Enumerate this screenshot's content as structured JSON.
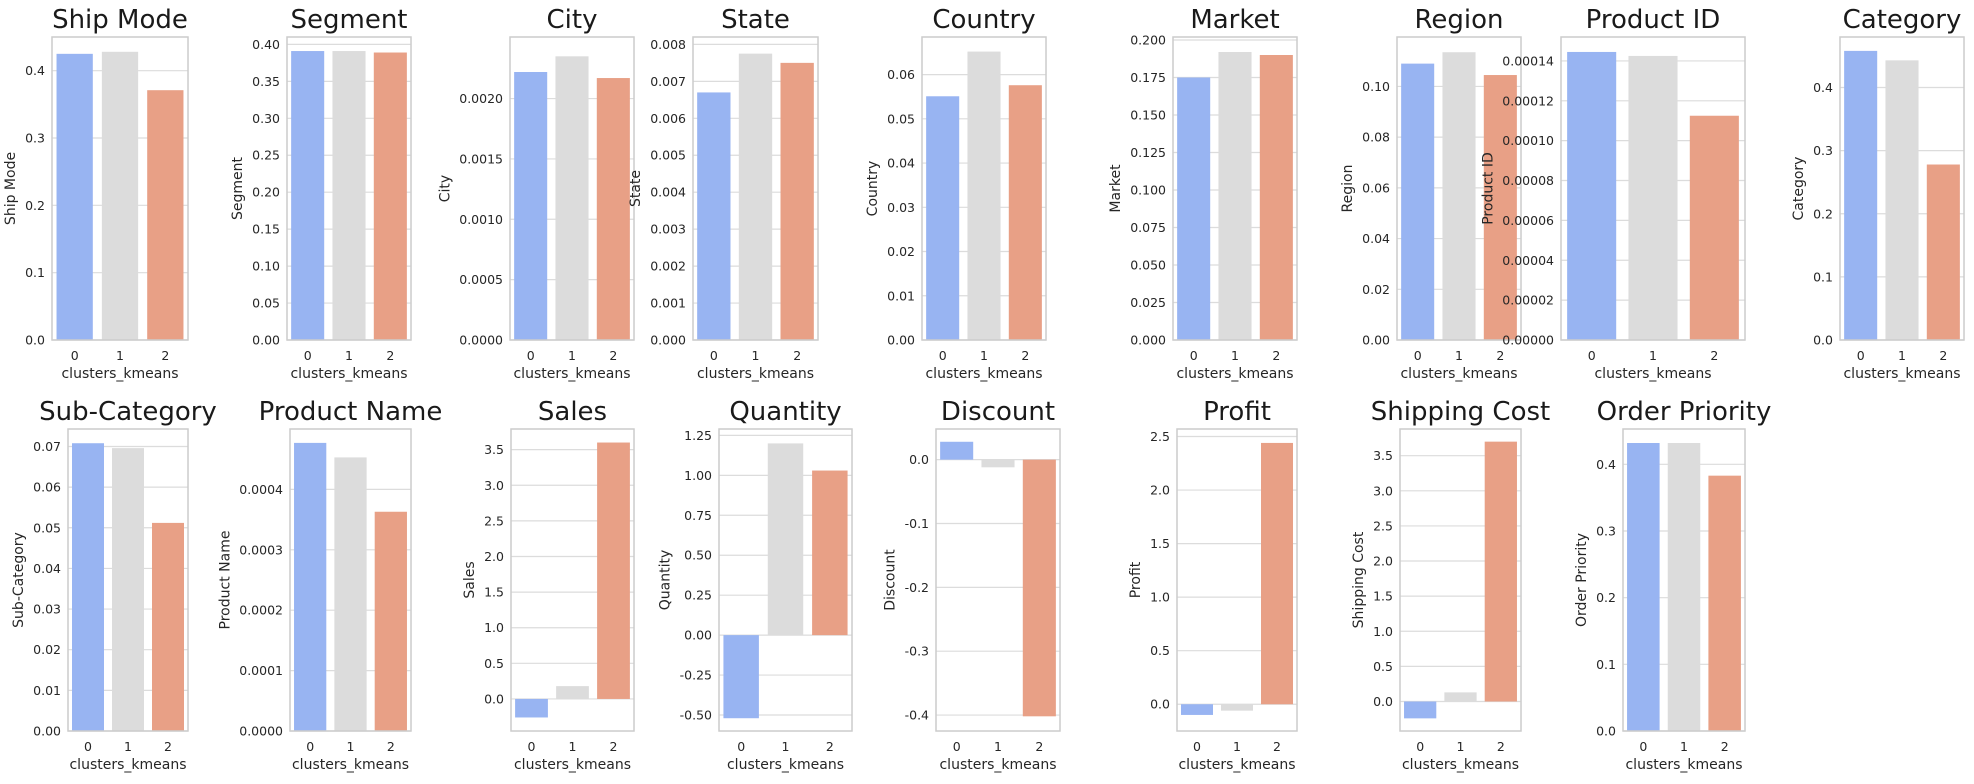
{
  "colors": {
    "cluster_0": "#98b4f2",
    "cluster_1": "#dcdcdc",
    "cluster_2": "#e8a086"
  },
  "chart_data": [
    {
      "type": "bar",
      "title": "Ship Mode",
      "xlabel": "clusters_kmeans",
      "ylabel": "Ship Mode",
      "categories": [
        "0",
        "1",
        "2"
      ],
      "values": [
        0.425,
        0.428,
        0.371
      ],
      "ylim": [
        0,
        0.45
      ],
      "yticks": [
        0.0,
        0.1,
        0.2,
        0.3,
        0.4
      ],
      "yticklabels": [
        "0.0",
        "0.1",
        "0.2",
        "0.3",
        "0.4"
      ],
      "grid": true
    },
    {
      "type": "bar",
      "title": "Segment",
      "xlabel": "clusters_kmeans",
      "ylabel": "Segment",
      "categories": [
        "0",
        "1",
        "2"
      ],
      "values": [
        0.391,
        0.391,
        0.389
      ],
      "ylim": [
        0,
        0.41
      ],
      "yticks": [
        0.0,
        0.05,
        0.1,
        0.15,
        0.2,
        0.25,
        0.3,
        0.35,
        0.4
      ],
      "yticklabels": [
        "0.00",
        "0.05",
        "0.10",
        "0.15",
        "0.20",
        "0.25",
        "0.30",
        "0.35",
        "0.40"
      ],
      "grid": true
    },
    {
      "type": "bar",
      "title": "City",
      "xlabel": "clusters_kmeans",
      "ylabel": "City",
      "categories": [
        "0",
        "1",
        "2"
      ],
      "values": [
        0.00222,
        0.00235,
        0.00217
      ],
      "ylim": [
        0,
        0.00251
      ],
      "yticks": [
        0.0,
        0.0005,
        0.001,
        0.0015,
        0.002
      ],
      "yticklabels": [
        "0.0000",
        "0.0005",
        "0.0010",
        "0.0015",
        "0.0020"
      ],
      "grid": true
    },
    {
      "type": "bar",
      "title": "State",
      "xlabel": "clusters_kmeans",
      "ylabel": "State",
      "categories": [
        "0",
        "1",
        "2"
      ],
      "values": [
        0.0067,
        0.00775,
        0.0075
      ],
      "ylim": [
        0,
        0.0082
      ],
      "yticks": [
        0.0,
        0.001,
        0.002,
        0.003,
        0.004,
        0.005,
        0.006,
        0.007,
        0.008
      ],
      "yticklabels": [
        "0.000",
        "0.001",
        "0.002",
        "0.003",
        "0.004",
        "0.005",
        "0.006",
        "0.007",
        "0.008"
      ],
      "grid": true
    },
    {
      "type": "bar",
      "title": "Country",
      "xlabel": "clusters_kmeans",
      "ylabel": "Country",
      "categories": [
        "0",
        "1",
        "2"
      ],
      "values": [
        0.0551,
        0.0652,
        0.0576
      ],
      "ylim": [
        0,
        0.0685
      ],
      "yticks": [
        0.0,
        0.01,
        0.02,
        0.03,
        0.04,
        0.05,
        0.06
      ],
      "yticklabels": [
        "0.00",
        "0.01",
        "0.02",
        "0.03",
        "0.04",
        "0.05",
        "0.06"
      ],
      "grid": true
    },
    {
      "type": "bar",
      "title": "Market",
      "xlabel": "clusters_kmeans",
      "ylabel": "Market",
      "categories": [
        "0",
        "1",
        "2"
      ],
      "values": [
        0.175,
        0.192,
        0.19
      ],
      "ylim": [
        0,
        0.202
      ],
      "yticks": [
        0.0,
        0.025,
        0.05,
        0.075,
        0.1,
        0.125,
        0.15,
        0.175,
        0.2
      ],
      "yticklabels": [
        "0.000",
        "0.025",
        "0.050",
        "0.075",
        "0.100",
        "0.125",
        "0.150",
        "0.175",
        "0.200"
      ],
      "grid": true
    },
    {
      "type": "bar",
      "title": "Region",
      "xlabel": "clusters_kmeans",
      "ylabel": "Region",
      "categories": [
        "0",
        "1",
        "2"
      ],
      "values": [
        0.109,
        0.1135,
        0.1045
      ],
      "ylim": [
        0,
        0.1195
      ],
      "yticks": [
        0.0,
        0.02,
        0.04,
        0.06,
        0.08,
        0.1
      ],
      "yticklabels": [
        "0.00",
        "0.02",
        "0.04",
        "0.06",
        "0.08",
        "0.10"
      ],
      "grid": true
    },
    {
      "type": "bar",
      "title": "Product ID",
      "xlabel": "clusters_kmeans",
      "ylabel": "Product ID",
      "categories": [
        "0",
        "1",
        "2"
      ],
      "values": [
        0.0001445,
        0.0001425,
        0.0001125
      ],
      "ylim": [
        0,
        0.000152
      ],
      "yticks": [
        0.0,
        2e-05,
        4e-05,
        6e-05,
        8e-05,
        0.0001,
        0.00012,
        0.00014
      ],
      "yticklabels": [
        "0.00000",
        "0.00002",
        "0.00004",
        "0.00006",
        "0.00008",
        "0.00010",
        "0.00012",
        "0.00014"
      ],
      "grid": true
    },
    {
      "type": "bar",
      "title": "Category",
      "xlabel": "clusters_kmeans",
      "ylabel": "Category",
      "categories": [
        "0",
        "1",
        "2"
      ],
      "values": [
        0.458,
        0.443,
        0.278
      ],
      "ylim": [
        0,
        0.48
      ],
      "yticks": [
        0.0,
        0.1,
        0.2,
        0.3,
        0.4
      ],
      "yticklabels": [
        "0.0",
        "0.1",
        "0.2",
        "0.3",
        "0.4"
      ],
      "grid": true
    },
    {
      "type": "bar",
      "title": "Sub-Category",
      "xlabel": "clusters_kmeans",
      "ylabel": "Sub-Category",
      "categories": [
        "0",
        "1",
        "2"
      ],
      "values": [
        0.0708,
        0.0696,
        0.0512
      ],
      "ylim": [
        0,
        0.0743
      ],
      "yticks": [
        0.0,
        0.01,
        0.02,
        0.03,
        0.04,
        0.05,
        0.06,
        0.07
      ],
      "yticklabels": [
        "0.00",
        "0.01",
        "0.02",
        "0.03",
        "0.04",
        "0.05",
        "0.06",
        "0.07"
      ],
      "grid": true
    },
    {
      "type": "bar",
      "title": "Product Name",
      "xlabel": "clusters_kmeans",
      "ylabel": "Product Name",
      "categories": [
        "0",
        "1",
        "2"
      ],
      "values": [
        0.000477,
        0.000453,
        0.000363
      ],
      "ylim": [
        0,
        0.0005
      ],
      "yticks": [
        0.0,
        0.0001,
        0.0002,
        0.0003,
        0.0004
      ],
      "yticklabels": [
        "0.0000",
        "0.0001",
        "0.0002",
        "0.0003",
        "0.0004"
      ],
      "grid": true
    },
    {
      "type": "bar",
      "title": "Sales",
      "xlabel": "clusters_kmeans",
      "ylabel": "Sales",
      "categories": [
        "0",
        "1",
        "2"
      ],
      "values": [
        -0.26,
        0.18,
        3.6
      ],
      "ylim": [
        -0.45,
        3.79
      ],
      "yticks": [
        0.0,
        0.5,
        1.0,
        1.5,
        2.0,
        2.5,
        3.0,
        3.5
      ],
      "yticklabels": [
        "0.0",
        "0.5",
        "1.0",
        "1.5",
        "2.0",
        "2.5",
        "3.0",
        "3.5"
      ],
      "grid": true
    },
    {
      "type": "bar",
      "title": "Quantity",
      "xlabel": "clusters_kmeans",
      "ylabel": "Quantity",
      "categories": [
        "0",
        "1",
        "2"
      ],
      "values": [
        -0.52,
        1.2,
        1.03
      ],
      "ylim": [
        -0.6,
        1.29
      ],
      "yticks": [
        -0.5,
        -0.25,
        0.0,
        0.25,
        0.5,
        0.75,
        1.0,
        1.25
      ],
      "yticklabels": [
        "-0.50",
        "-0.25",
        "0.00",
        "0.25",
        "0.50",
        "0.75",
        "1.00",
        "1.25"
      ],
      "grid": true
    },
    {
      "type": "bar",
      "title": "Discount",
      "xlabel": "clusters_kmeans",
      "ylabel": "Discount",
      "categories": [
        "0",
        "1",
        "2"
      ],
      "values": [
        0.028,
        -0.012,
        -0.402
      ],
      "ylim": [
        -0.425,
        0.048
      ],
      "yticks": [
        -0.4,
        -0.3,
        -0.2,
        -0.1,
        0.0
      ],
      "yticklabels": [
        "-0.4",
        "-0.3",
        "-0.2",
        "-0.1",
        "0.0"
      ],
      "grid": true
    },
    {
      "type": "bar",
      "title": "Profit",
      "xlabel": "clusters_kmeans",
      "ylabel": "Profit",
      "categories": [
        "0",
        "1",
        "2"
      ],
      "values": [
        -0.1,
        -0.06,
        2.44
      ],
      "ylim": [
        -0.25,
        2.57
      ],
      "yticks": [
        0.0,
        0.5,
        1.0,
        1.5,
        2.0,
        2.5
      ],
      "yticklabels": [
        "0.0",
        "0.5",
        "1.0",
        "1.5",
        "2.0",
        "2.5"
      ],
      "grid": true
    },
    {
      "type": "bar",
      "title": "Shipping Cost",
      "xlabel": "clusters_kmeans",
      "ylabel": "Shipping Cost",
      "categories": [
        "0",
        "1",
        "2"
      ],
      "values": [
        -0.24,
        0.13,
        3.7
      ],
      "ylim": [
        -0.42,
        3.88
      ],
      "yticks": [
        0.0,
        0.5,
        1.0,
        1.5,
        2.0,
        2.5,
        3.0,
        3.5
      ],
      "yticklabels": [
        "0.0",
        "0.5",
        "1.0",
        "1.5",
        "2.0",
        "2.5",
        "3.0",
        "3.5"
      ],
      "grid": true
    },
    {
      "type": "bar",
      "title": "Order Priority",
      "xlabel": "clusters_kmeans",
      "ylabel": "Order Priority",
      "categories": [
        "0",
        "1",
        "2"
      ],
      "values": [
        0.432,
        0.432,
        0.383
      ],
      "ylim": [
        0,
        0.453
      ],
      "yticks": [
        0.0,
        0.1,
        0.2,
        0.3,
        0.4
      ],
      "yticklabels": [
        "0.0",
        "0.1",
        "0.2",
        "0.3",
        "0.4"
      ],
      "grid": true
    }
  ]
}
